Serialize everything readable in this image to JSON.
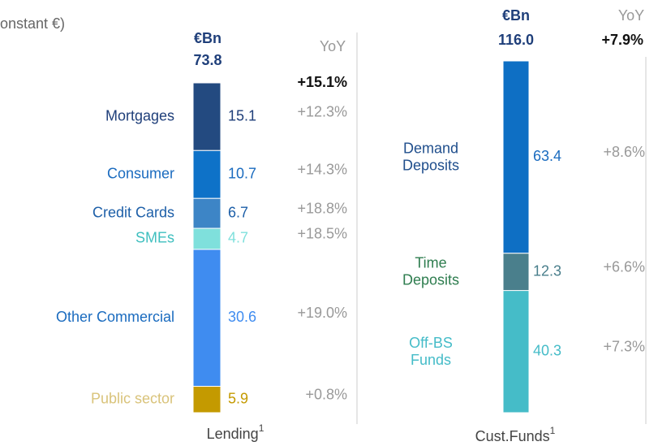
{
  "subtitle": "onstant €)",
  "chart_data": [
    {
      "type": "stacked-bar",
      "unit": "€Bn",
      "yoy_header": "YoY",
      "categories": [
        "Lending"
      ],
      "footnote": "1",
      "total": "73.8",
      "total_yoy": "+15.1%",
      "series": [
        {
          "name": "Public sector",
          "color": "#c49a00",
          "label_color": "#d9c37a",
          "value_color": "#c49a00",
          "values": [
            5.9
          ],
          "yoy": "+0.8%"
        },
        {
          "name": "Other Commercial",
          "color": "#3f8cf0",
          "label_color": "#1a6bbf",
          "value_color": "#3f8cf0",
          "values": [
            30.6
          ],
          "yoy": "+19.0%"
        },
        {
          "name": "SMEs",
          "color": "#7fe0dc",
          "label_color": "#3fbfbf",
          "value_color": "#7fe0dc",
          "values": [
            4.7
          ],
          "yoy": "+18.5%"
        },
        {
          "name": "Credit Cards",
          "color": "#3d85c6",
          "label_color": "#1d5fa8",
          "value_color": "#1d5fa8",
          "values": [
            6.7
          ],
          "yoy": "+18.8%"
        },
        {
          "name": "Consumer",
          "color": "#0e72c8",
          "label_color": "#1a6bbf",
          "value_color": "#1a6bbf",
          "values": [
            10.7
          ],
          "yoy": "+14.3%"
        },
        {
          "name": "Mortgages",
          "color": "#234a80",
          "label_color": "#1f3f7a",
          "value_color": "#1f3f7a",
          "values": [
            15.1
          ],
          "yoy": "+12.3%"
        }
      ]
    },
    {
      "type": "stacked-bar",
      "unit": "€Bn",
      "yoy_header": "YoY",
      "categories": [
        "Cust.Funds"
      ],
      "footnote": "1",
      "total": "116.0",
      "total_yoy": "+7.9%",
      "series": [
        {
          "name": [
            "Off-BS",
            "Funds"
          ],
          "color": "#45bcc8",
          "label_color": "#45bcc8",
          "value_color": "#45bcc8",
          "values": [
            40.3
          ],
          "yoy": "+7.3%"
        },
        {
          "name": [
            "Time",
            "Deposits"
          ],
          "color": "#4a7f8c",
          "label_color": "#2e7d4f",
          "value_color": "#4a7f8c",
          "values": [
            12.3
          ],
          "yoy": "+6.6%"
        },
        {
          "name": [
            "Demand",
            "Deposits"
          ],
          "color": "#0e6fc4",
          "label_color": "#1f4e8c",
          "value_color": "#1a6bbf",
          "values": [
            63.4
          ],
          "yoy": "+8.6%"
        }
      ]
    }
  ]
}
